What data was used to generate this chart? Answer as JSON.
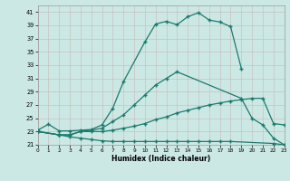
{
  "bg_color": "#cce8e4",
  "grid_color": "#c8dbd8",
  "line_color": "#1a7a6e",
  "xlabel": "Humidex (Indice chaleur)",
  "xlim": [
    0,
    23
  ],
  "ylim": [
    21,
    42
  ],
  "xticks": [
    0,
    1,
    2,
    3,
    4,
    5,
    6,
    7,
    8,
    9,
    10,
    11,
    12,
    13,
    14,
    15,
    16,
    17,
    18,
    19,
    20,
    21,
    22,
    23
  ],
  "yticks": [
    21,
    23,
    25,
    27,
    29,
    31,
    33,
    35,
    37,
    39,
    41
  ],
  "top_x": [
    0,
    1,
    2,
    3,
    4,
    5,
    6,
    7,
    8,
    10,
    11,
    12,
    13,
    14,
    15,
    16,
    17,
    18,
    19
  ],
  "top_y": [
    23.2,
    24.1,
    23.1,
    23.1,
    23.2,
    23.3,
    24.0,
    26.5,
    30.5,
    36.5,
    39.2,
    39.6,
    39.1,
    40.3,
    40.9,
    39.8,
    39.5,
    38.8,
    32.5
  ],
  "mid_x": [
    0,
    2,
    3,
    4,
    5,
    6,
    7,
    8,
    9,
    10,
    11,
    12,
    13,
    19,
    20,
    21,
    22,
    23
  ],
  "mid_y": [
    23.0,
    22.5,
    22.5,
    23.0,
    23.2,
    23.5,
    24.5,
    25.5,
    27.0,
    28.5,
    30.0,
    31.0,
    32.0,
    28.0,
    25.0,
    24.0,
    22.0,
    21.0
  ],
  "low_x": [
    0,
    2,
    3,
    4,
    5,
    6,
    7,
    8,
    9,
    10,
    11,
    12,
    13,
    14,
    15,
    16,
    17,
    18,
    19,
    20,
    21,
    22,
    23
  ],
  "low_y": [
    23.0,
    22.5,
    22.5,
    23.0,
    23.0,
    23.0,
    23.2,
    23.5,
    23.8,
    24.2,
    24.8,
    25.2,
    25.8,
    26.2,
    26.6,
    27.0,
    27.3,
    27.6,
    27.8,
    28.0,
    28.0,
    24.2,
    24.0
  ],
  "flat_x": [
    0,
    2,
    3,
    4,
    5,
    6,
    7,
    8,
    9,
    10,
    11,
    12,
    13,
    14,
    15,
    16,
    17,
    18,
    22,
    23
  ],
  "flat_y": [
    23.0,
    22.5,
    22.2,
    22.0,
    21.8,
    21.6,
    21.5,
    21.5,
    21.5,
    21.5,
    21.5,
    21.5,
    21.5,
    21.5,
    21.5,
    21.5,
    21.5,
    21.5,
    21.2,
    21.0
  ]
}
